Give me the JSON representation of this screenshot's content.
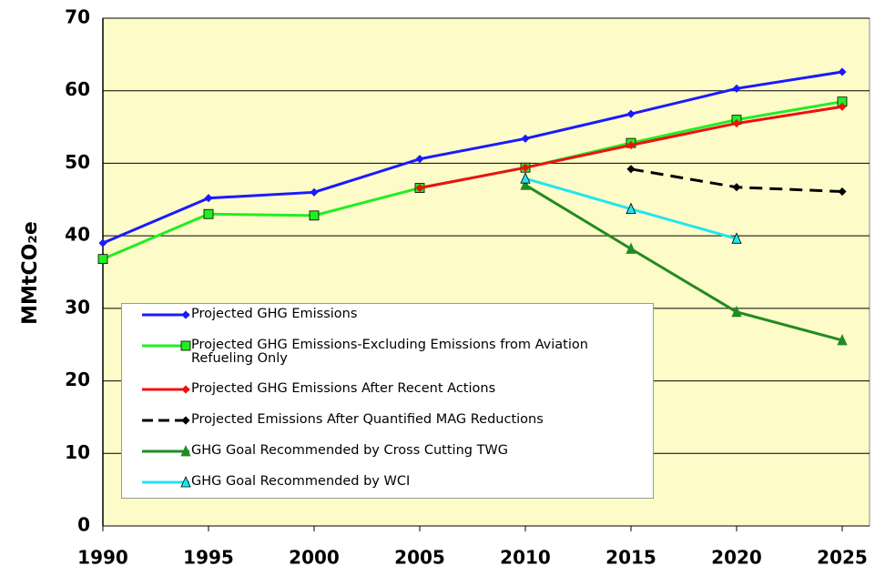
{
  "chart_data": {
    "type": "line",
    "ylabel": "MMtCO₂e",
    "x": [
      1990,
      1995,
      2000,
      2005,
      2010,
      2015,
      2020,
      2025
    ],
    "xlim": [
      1990,
      2025
    ],
    "xticks": [
      1990,
      1995,
      2000,
      2005,
      2010,
      2015,
      2020,
      2025
    ],
    "ylim": [
      0,
      70
    ],
    "yticks": [
      0,
      10,
      20,
      30,
      40,
      50,
      60,
      70
    ],
    "grid": true,
    "legend": "lower left",
    "series": [
      {
        "name": "Projected GHG Emissions",
        "color": "#1a1aff",
        "marker": "diamond",
        "values": [
          39,
          45.2,
          46,
          50.6,
          53.4,
          56.8,
          60.3,
          62.6
        ]
      },
      {
        "name": "Projected GHG Emissions-Excluding Emissions from Aviation Refueling Only",
        "color": "#22ee22",
        "marker": "square",
        "values": [
          36.8,
          43,
          42.8,
          46.6,
          49.4,
          52.8,
          56,
          58.5
        ]
      },
      {
        "name": "Projected GHG Emissions After Recent Actions",
        "color": "#ee1111",
        "marker": "diamond",
        "values": [
          null,
          null,
          null,
          46.6,
          49.4,
          52.5,
          55.5,
          57.8
        ]
      },
      {
        "name": "Projected Emissions After Quantified MAG Reductions",
        "color": "#000000",
        "marker": "diamond",
        "dash": true,
        "values": [
          null,
          null,
          null,
          null,
          null,
          49.2,
          46.7,
          46.1
        ]
      },
      {
        "name": "GHG Goal Recommended by Cross Cutting TWG",
        "color": "#228b22",
        "marker": "triangle",
        "values": [
          null,
          null,
          null,
          null,
          47,
          38.2,
          29.5,
          25.6
        ]
      },
      {
        "name": "GHG Goal Recommended by WCI",
        "color": "#22e5ee",
        "marker": "triangle",
        "values": [
          null,
          null,
          null,
          null,
          47.9,
          43.7,
          39.6,
          null
        ]
      }
    ]
  }
}
